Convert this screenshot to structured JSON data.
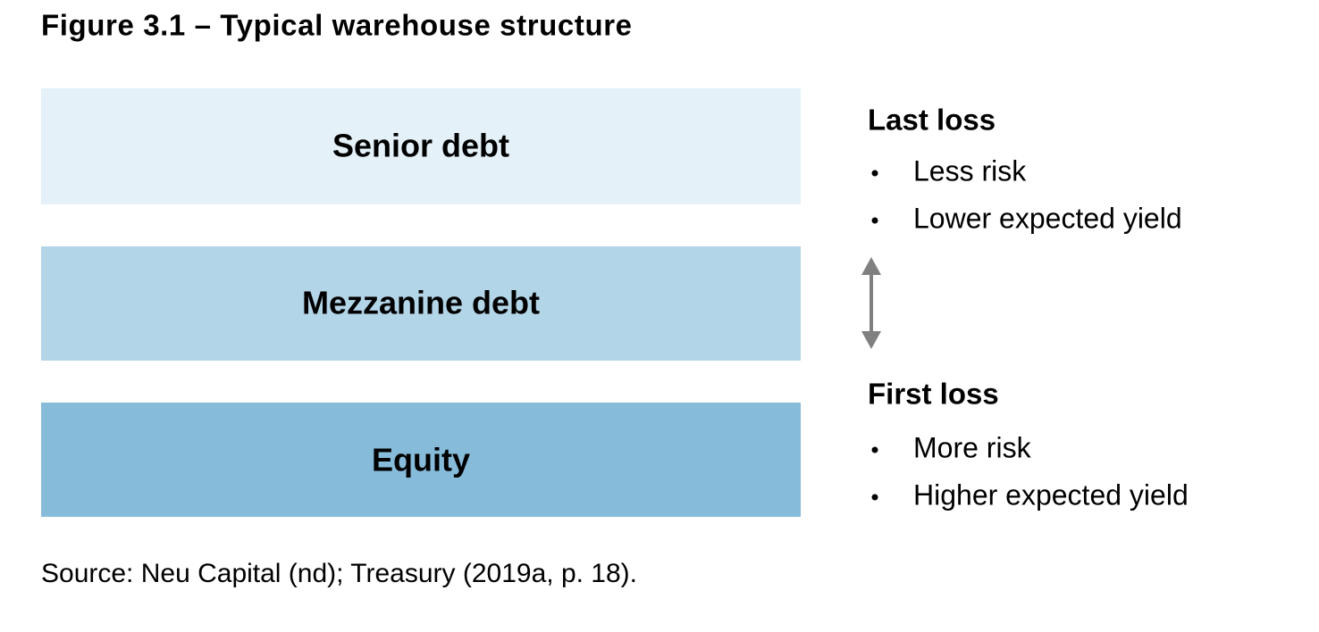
{
  "title": "Figure 3.1 – Typical warehouse structure",
  "tiers": [
    {
      "label": "Senior debt"
    },
    {
      "label": "Mezzanine debt"
    },
    {
      "label": "Equity"
    }
  ],
  "notes": [
    {
      "heading": "Last loss",
      "bullets": [
        "Less risk",
        "Lower expected yield"
      ]
    },
    {
      "heading": "First loss",
      "bullets": [
        "More risk",
        "Higher expected yield"
      ]
    }
  ],
  "source": "Source: Neu Capital (nd); Treasury (2019a, p. 18)."
}
